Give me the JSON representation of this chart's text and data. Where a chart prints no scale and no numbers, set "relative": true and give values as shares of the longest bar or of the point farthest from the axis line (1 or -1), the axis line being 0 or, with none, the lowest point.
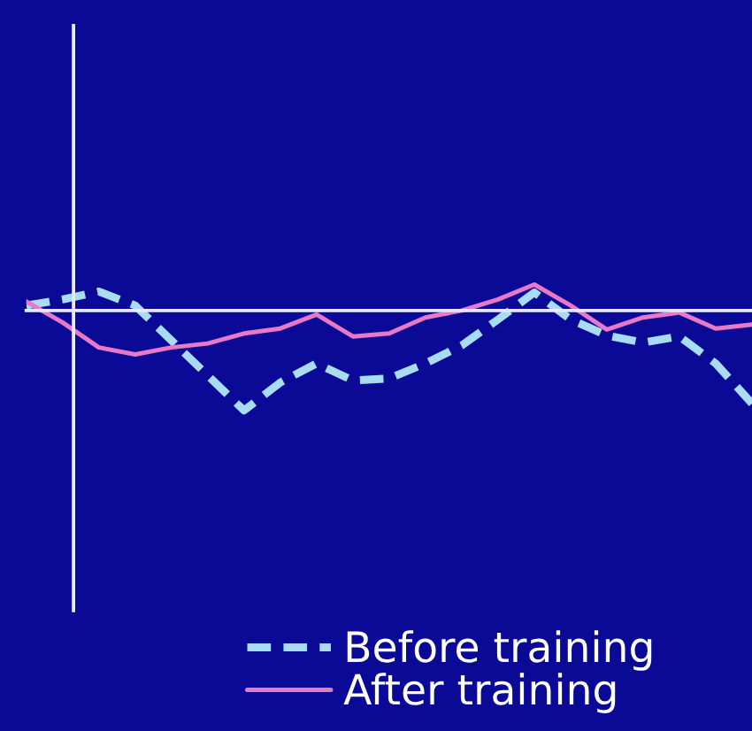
{
  "chart_data": {
    "type": "line",
    "relative": true,
    "categories": [
      null,
      null,
      null,
      null,
      null,
      null,
      null,
      null,
      null,
      null,
      null,
      null,
      null,
      null,
      null,
      null,
      null,
      null,
      null,
      null,
      null
    ],
    "series": [
      {
        "name": "Before training",
        "color": "#a8dcf4",
        "line_style": "dashed",
        "values": [
          0.05,
          0.11,
          0.19,
          0.05,
          -0.3,
          -0.65,
          -1,
          -0.72,
          -0.53,
          -0.7,
          -0.68,
          -0.53,
          -0.35,
          -0.09,
          0.18,
          -0.09,
          -0.25,
          -0.32,
          -0.26,
          -0.53,
          -0.93
        ]
      },
      {
        "name": "After training",
        "color": "#e878c8",
        "line_style": "solid",
        "values": [
          0.09,
          -0.12,
          -0.37,
          -0.44,
          -0.37,
          -0.33,
          -0.23,
          -0.18,
          -0.04,
          -0.26,
          -0.23,
          -0.07,
          0,
          0.11,
          0.26,
          0.05,
          -0.19,
          -0.07,
          -0.02,
          -0.18,
          -0.14
        ]
      }
    ],
    "legend": "bottom"
  }
}
